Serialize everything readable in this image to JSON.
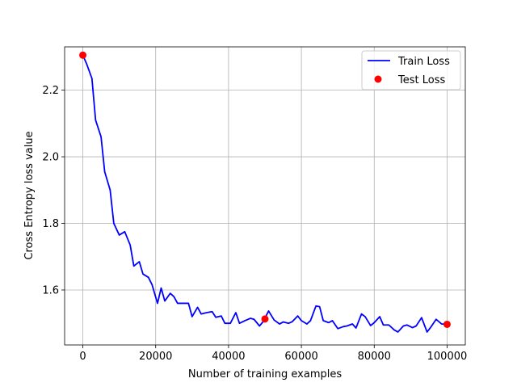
{
  "colors": {
    "train_line": "#0000ff",
    "test_points": "#ff0000",
    "grid": "#b0b0b0",
    "axes": "#000000"
  },
  "chart_data": {
    "type": "line",
    "xlabel": "Number of training examples",
    "ylabel": "Cross Entropy loss value",
    "xlim": [
      -5000,
      105000
    ],
    "ylim": [
      1.435,
      2.33
    ],
    "x_ticks": [
      0,
      20000,
      40000,
      60000,
      80000,
      100000
    ],
    "x_tick_labels": [
      "0",
      "20000",
      "40000",
      "60000",
      "80000",
      "100000"
    ],
    "y_ticks": [
      1.6,
      1.8,
      2.0,
      2.2
    ],
    "y_tick_labels": [
      "1.6",
      "1.8",
      "2.0",
      "2.2"
    ],
    "grid": true,
    "legend_position": "top-right",
    "series": [
      {
        "name": "Train Loss",
        "kind": "line",
        "x": [
          0,
          1000,
          2500,
          3500,
          5000,
          6000,
          7500,
          8500,
          10000,
          11500,
          13000,
          14000,
          15500,
          16500,
          18000,
          19000,
          20500,
          21500,
          22500,
          24000,
          25000,
          26000,
          27500,
          29000,
          30000,
          31500,
          32500,
          34000,
          35500,
          36500,
          38000,
          39000,
          40500,
          42000,
          43000,
          44500,
          46000,
          47000,
          48500,
          49500,
          51000,
          52500,
          54000,
          55000,
          56500,
          57500,
          59000,
          60000,
          61500,
          62500,
          64000,
          65000,
          66000,
          67500,
          68500,
          70000,
          71500,
          72500,
          74000,
          75000,
          76500,
          77500,
          79000,
          80000,
          81500,
          82500,
          84000,
          85500,
          86500,
          88000,
          89000,
          90500,
          91500,
          93000,
          94500,
          95500,
          97000,
          98500,
          100000
        ],
        "y": [
          2.305,
          2.28,
          2.235,
          2.11,
          2.06,
          1.955,
          1.9,
          1.8,
          1.765,
          1.775,
          1.735,
          1.672,
          1.685,
          1.648,
          1.638,
          1.616,
          1.56,
          1.606,
          1.567,
          1.59,
          1.58,
          1.56,
          1.56,
          1.56,
          1.52,
          1.548,
          1.528,
          1.532,
          1.535,
          1.518,
          1.522,
          1.5,
          1.5,
          1.532,
          1.5,
          1.508,
          1.515,
          1.512,
          1.492,
          1.505,
          1.537,
          1.51,
          1.498,
          1.504,
          1.5,
          1.505,
          1.522,
          1.508,
          1.498,
          1.508,
          1.552,
          1.55,
          1.508,
          1.502,
          1.508,
          1.484,
          1.49,
          1.492,
          1.498,
          1.486,
          1.528,
          1.52,
          1.493,
          1.502,
          1.52,
          1.495,
          1.495,
          1.48,
          1.474,
          1.492,
          1.495,
          1.487,
          1.492,
          1.517,
          1.474,
          1.488,
          1.512,
          1.498,
          1.497
        ]
      },
      {
        "name": "Test Loss",
        "kind": "scatter",
        "x": [
          0,
          50000,
          100000
        ],
        "y": [
          2.305,
          1.513,
          1.497
        ]
      }
    ]
  }
}
